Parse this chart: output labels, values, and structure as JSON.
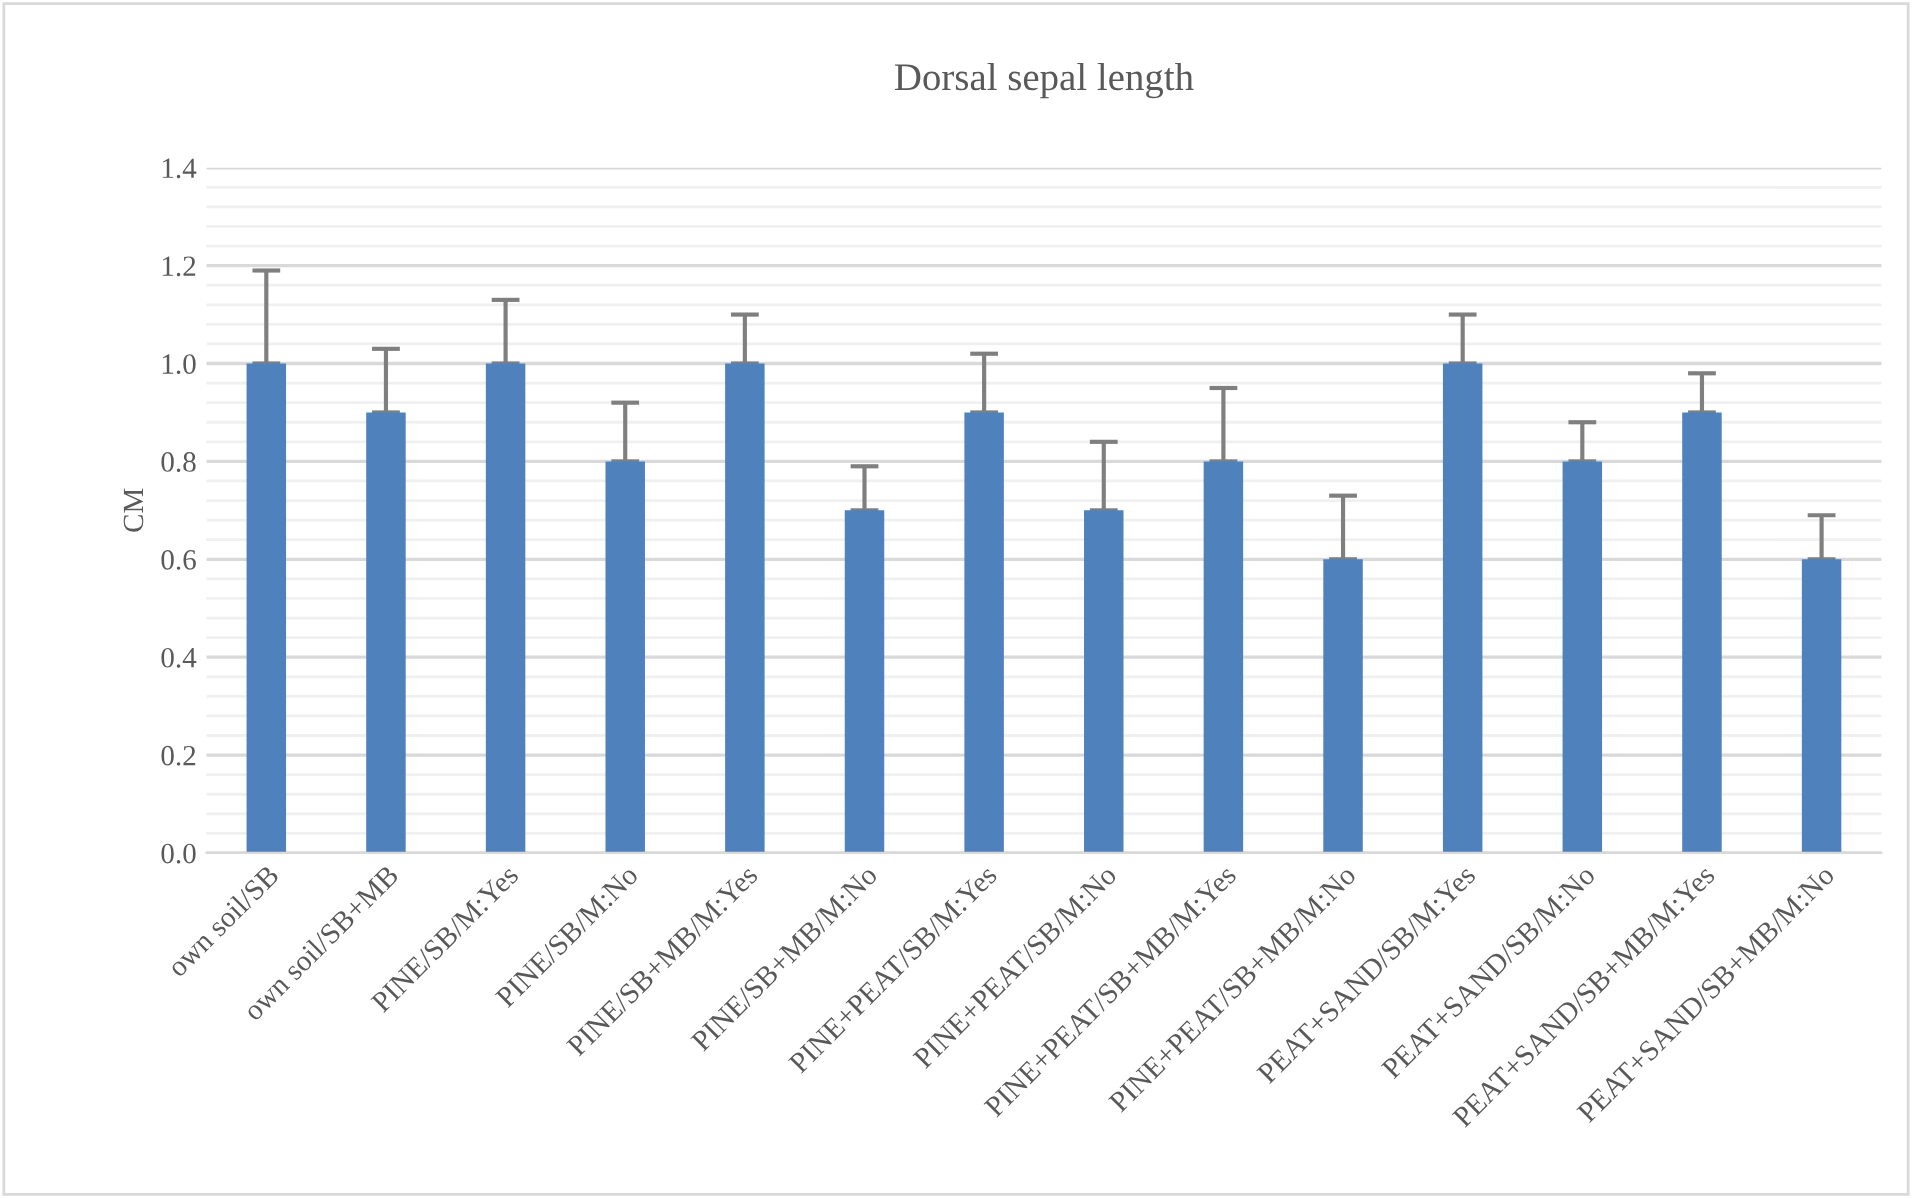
{
  "chart_data": {
    "type": "bar",
    "title": "Dorsal sepal length",
    "ylabel": "CM",
    "categories": [
      "own soil/SB",
      "own soil/SB+MB",
      "PINE/SB/M:Yes",
      "PINE/SB/M:No",
      "PINE/SB+MB/M:Yes",
      "PINE/SB+MB/M:No",
      "PINE+PEAT/SB/M:Yes",
      "PINE+PEAT/SB/M:No",
      "PINE+PEAT/SB+MB/M:Yes",
      "PINE+PEAT/SB+MB/M:No",
      "PEAT+SAND/SB/M:Yes",
      "PEAT+SAND/SB/M:No",
      "PEAT+SAND/SB+MB/M:Yes",
      "PEAT+SAND/SB+MB/M:No"
    ],
    "values": [
      1.0,
      0.9,
      1.0,
      0.8,
      1.0,
      0.7,
      0.9,
      0.7,
      0.8,
      0.6,
      1.0,
      0.8,
      0.9,
      0.6
    ],
    "errors": [
      [
        1.0,
        1.19
      ],
      [
        0.9,
        1.03
      ],
      [
        1.0,
        1.13
      ],
      [
        0.8,
        0.92
      ],
      [
        1.0,
        1.1
      ],
      [
        0.7,
        0.79
      ],
      [
        0.9,
        1.02
      ],
      [
        0.7,
        0.84
      ],
      [
        0.8,
        0.95
      ],
      [
        0.6,
        0.73
      ],
      [
        1.0,
        1.1
      ],
      [
        0.8,
        0.88
      ],
      [
        0.9,
        0.98
      ],
      [
        0.6,
        0.69
      ]
    ],
    "color": "#4f81bd",
    "ylim": [
      0,
      1.4
    ],
    "yticks": [
      {
        "value": 0,
        "label": "0.0"
      },
      {
        "value": 0.2,
        "label": "0.2"
      },
      {
        "value": 0.4,
        "label": "0.4"
      },
      {
        "value": 0.6,
        "label": "0.6"
      },
      {
        "value": 0.8,
        "label": "0.8"
      },
      {
        "value": 1.0,
        "label": "1.0"
      },
      {
        "value": 1.2,
        "label": "1.2"
      },
      {
        "value": 1.4,
        "label": "1.4"
      }
    ],
    "grid": "y",
    "legend": false
  }
}
